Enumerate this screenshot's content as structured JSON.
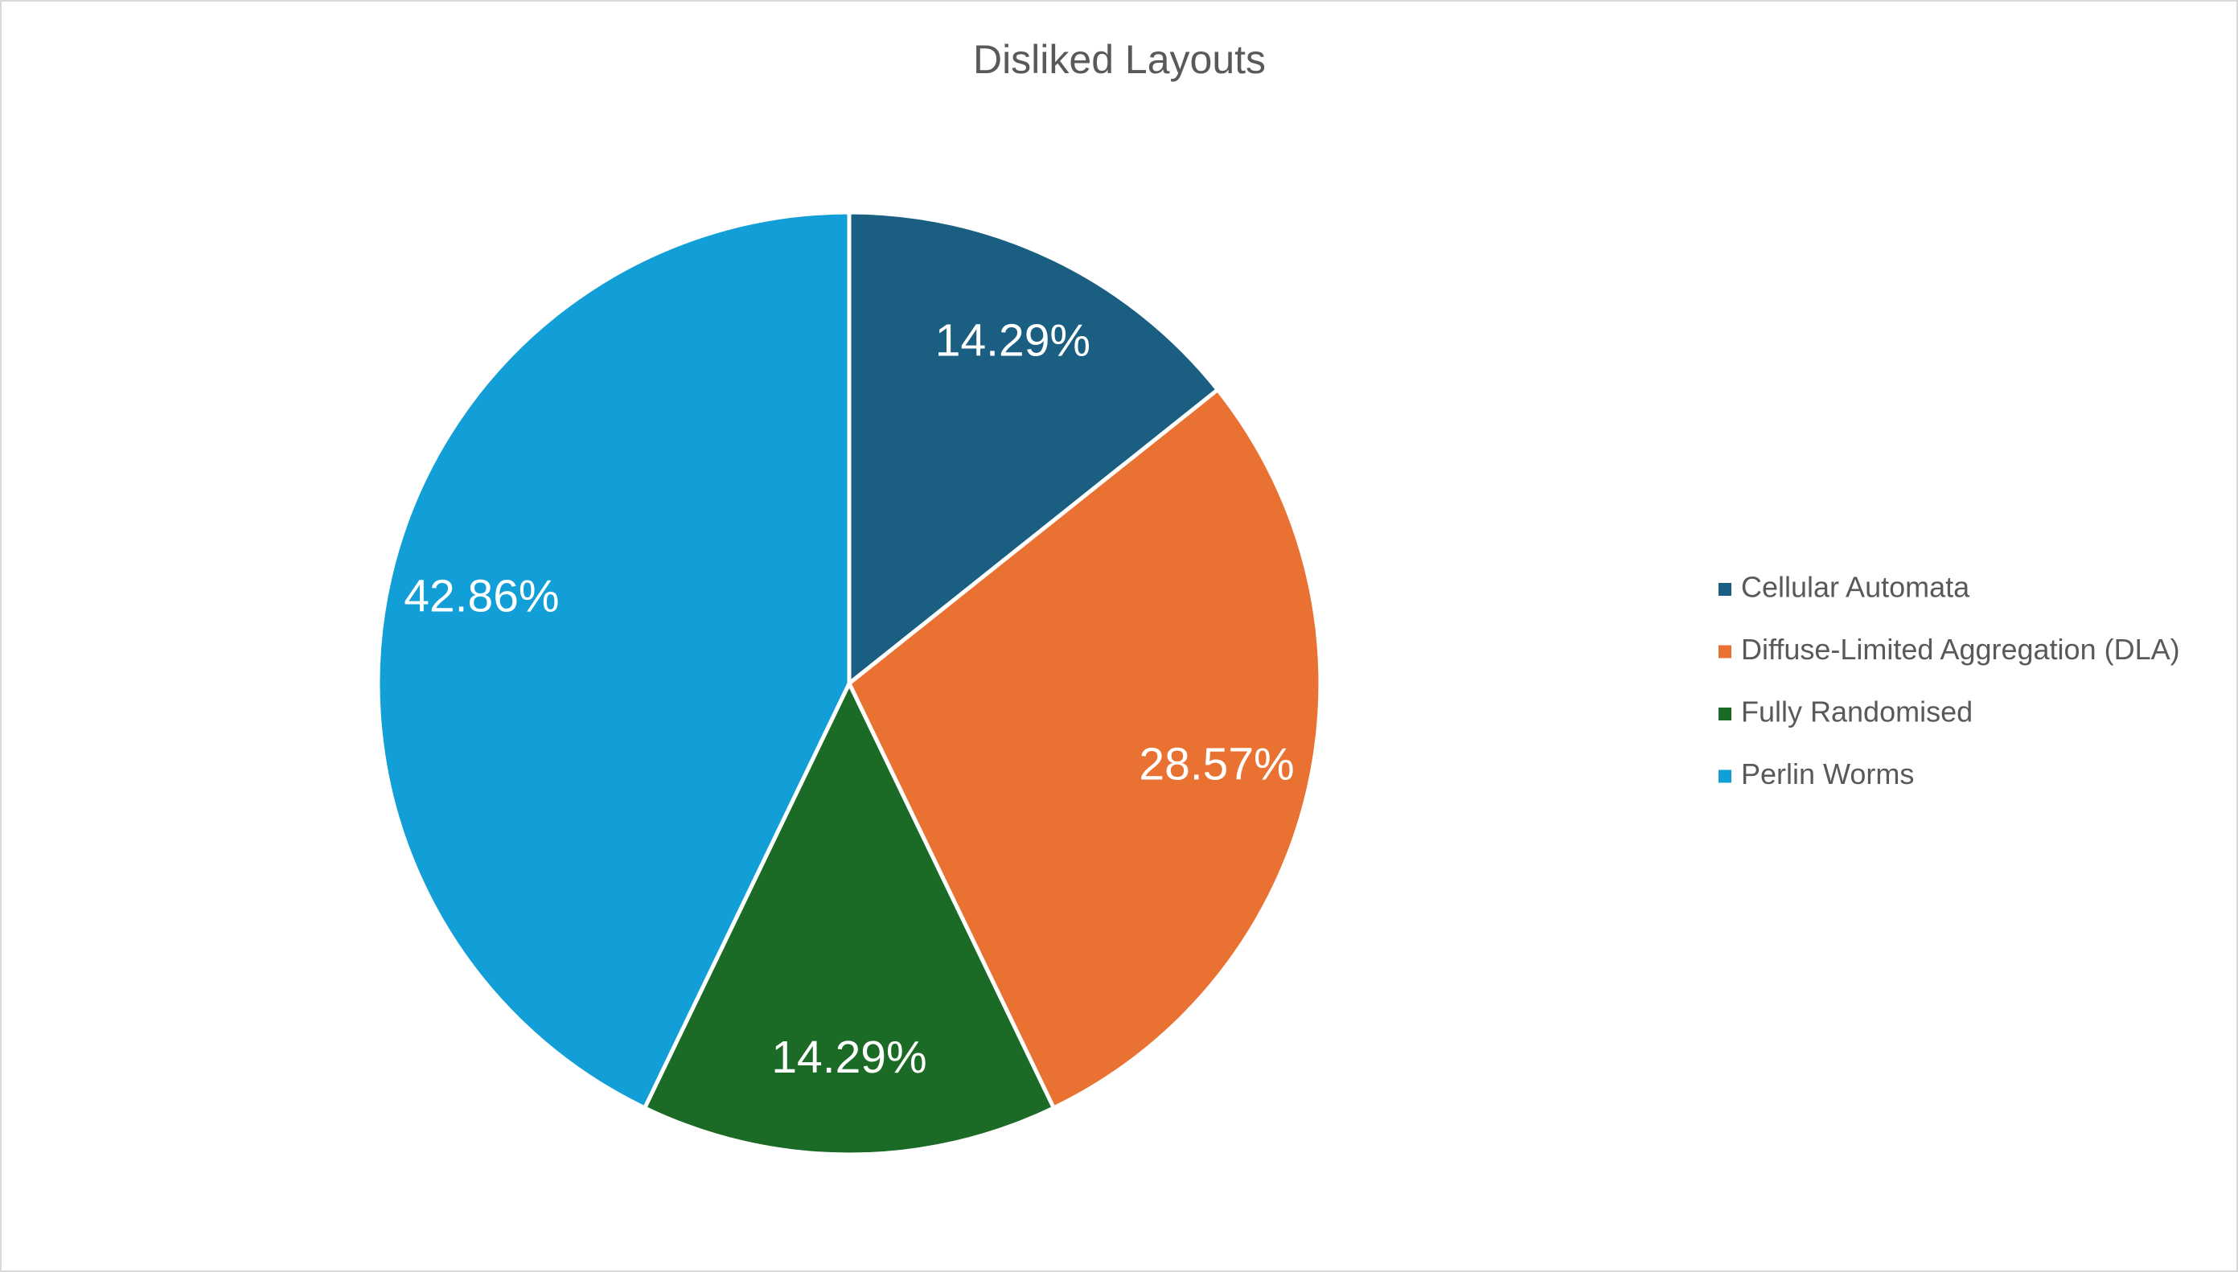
{
  "chart_data": {
    "type": "pie",
    "title": "Disliked Layouts",
    "categories": [
      "Cellular Automata",
      "Diffuse-Limited Aggregation (DLA)",
      "Fully Randomised",
      "Perlin Worms"
    ],
    "values": [
      14.29,
      28.57,
      14.29,
      42.86
    ],
    "value_labels": [
      "14.29%",
      "28.57%",
      "14.29%",
      "42.86%"
    ],
    "colors": [
      "#1a5e82",
      "#e97132",
      "#1b6b26",
      "#129ed6"
    ],
    "legend": "right"
  }
}
